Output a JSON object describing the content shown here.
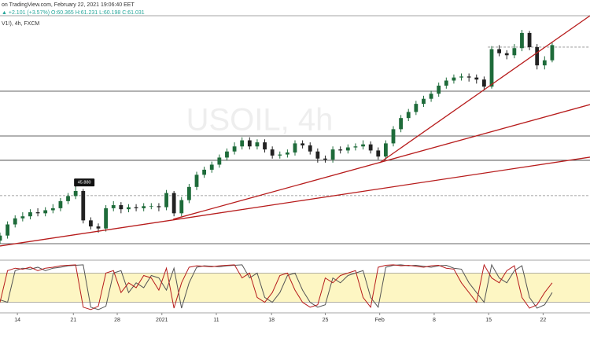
{
  "chart_data": {
    "type": "candlestick",
    "source": "on TradingView.com, February 22, 2021 19:06:40 EET",
    "quote": "▲ +2.101 (+3.57%) O:60.365 H:61.231 L:60.198 C:61.031",
    "symbol": "V1!), 4h, FXCM",
    "watermark": "USOIL, 4h",
    "up_color": "#1e6b3a",
    "down_color": "#222222",
    "xlim": [
      0,
      78
    ],
    "ylim": [
      40.3,
      62.8
    ],
    "xticks": [
      {
        "value": 2.3,
        "label": "14"
      },
      {
        "value": 9.7,
        "label": "21"
      },
      {
        "value": 15.5,
        "label": "28"
      },
      {
        "value": 21.4,
        "label": "2021"
      },
      {
        "value": 28.6,
        "label": "11"
      },
      {
        "value": 35.9,
        "label": "18"
      },
      {
        "value": 43,
        "label": "25"
      },
      {
        "value": 50.2,
        "label": "Feb"
      },
      {
        "value": 57.4,
        "label": "8"
      },
      {
        "value": 64.6,
        "label": "15"
      },
      {
        "value": 71.8,
        "label": "22"
      }
    ],
    "candles": {
      "open": [
        40.6,
        41.1,
        42.2,
        42.8,
        43.0,
        43.4,
        43.3,
        43.6,
        43.8,
        44.5,
        45.0,
        45.5,
        42.6,
        42.0,
        41.8,
        43.8,
        44.1,
        43.7,
        43.9,
        43.8,
        44.0,
        44.0,
        43.9,
        45.3,
        43.3,
        44.6,
        45.9,
        47.1,
        47.6,
        48.1,
        48.8,
        49.4,
        49.9,
        50.5,
        49.9,
        50.3,
        49.6,
        49.0,
        49.1,
        49.3,
        50.2,
        50.0,
        49.4,
        48.7,
        48.6,
        49.6,
        49.5,
        49.8,
        49.9,
        50.1,
        49.5,
        48.9,
        50.2,
        51.6,
        52.7,
        53.3,
        54.1,
        54.6,
        55.1,
        55.9,
        56.4,
        56.7,
        56.8,
        56.7,
        56.5,
        55.8,
        59.5,
        59.1,
        58.9,
        59.6,
        61.1,
        59.7,
        57.9,
        58.4
      ],
      "high": [
        41.4,
        42.5,
        43.1,
        43.4,
        43.7,
        43.8,
        43.9,
        44.2,
        44.8,
        45.3,
        45.88,
        45.7,
        42.9,
        42.3,
        44.1,
        44.5,
        44.4,
        44.2,
        44.2,
        44.3,
        44.3,
        44.3,
        45.6,
        45.5,
        44.9,
        46.2,
        47.4,
        47.9,
        48.4,
        49.1,
        49.7,
        50.3,
        50.8,
        50.8,
        50.6,
        50.6,
        49.9,
        49.4,
        49.6,
        50.5,
        50.5,
        50.3,
        49.7,
        49.0,
        49.9,
        49.9,
        50.1,
        50.2,
        50.5,
        50.4,
        49.8,
        50.5,
        51.9,
        53.0,
        53.6,
        54.4,
        54.9,
        55.4,
        56.2,
        56.7,
        57.0,
        57.1,
        57.1,
        57.0,
        56.8,
        59.8,
        59.9,
        59.4,
        60.0,
        61.4,
        61.3,
        60.0,
        58.8,
        60.2
      ],
      "low": [
        40.3,
        40.8,
        41.9,
        42.5,
        42.7,
        43.0,
        43.0,
        43.3,
        43.5,
        44.2,
        44.7,
        42.3,
        41.7,
        41.4,
        41.5,
        43.5,
        43.3,
        43.4,
        43.5,
        43.5,
        43.7,
        43.5,
        43.6,
        43.0,
        43.0,
        44.3,
        45.6,
        46.8,
        47.3,
        47.8,
        48.5,
        49.1,
        49.6,
        49.6,
        49.6,
        49.3,
        48.7,
        48.7,
        48.8,
        49.0,
        49.7,
        49.1,
        48.3,
        48.3,
        48.3,
        49.2,
        49.2,
        49.5,
        49.6,
        49.2,
        48.6,
        48.6,
        49.9,
        51.3,
        52.4,
        53.0,
        53.8,
        54.3,
        54.8,
        55.6,
        56.1,
        56.4,
        56.3,
        56.1,
        55.5,
        55.6,
        58.8,
        58.5,
        58.6,
        59.3,
        59.4,
        57.5,
        57.5,
        58.2
      ],
      "close": [
        41.1,
        42.2,
        42.8,
        43.0,
        43.4,
        43.3,
        43.6,
        43.8,
        44.5,
        45.0,
        45.5,
        42.6,
        42.0,
        41.8,
        43.8,
        44.1,
        43.7,
        43.9,
        43.8,
        44.0,
        44.0,
        43.9,
        45.3,
        43.3,
        44.6,
        45.9,
        47.1,
        47.6,
        48.1,
        48.8,
        49.4,
        49.9,
        50.5,
        49.9,
        50.3,
        49.6,
        49.0,
        49.1,
        49.3,
        50.2,
        50.0,
        49.4,
        48.7,
        48.6,
        49.6,
        49.5,
        49.8,
        49.9,
        50.1,
        49.5,
        48.9,
        50.2,
        51.6,
        52.7,
        53.3,
        54.1,
        54.6,
        55.1,
        55.9,
        56.4,
        56.7,
        56.8,
        56.7,
        56.5,
        55.8,
        59.5,
        59.1,
        58.9,
        59.6,
        61.1,
        59.7,
        57.9,
        58.4,
        59.9
      ]
    },
    "price_label": {
      "value": 45.88,
      "label": "45.880",
      "x": 10
    },
    "hlines": [
      {
        "value": 59.7,
        "style": "dashed",
        "x_from": 64.5
      },
      {
        "value": 55.35,
        "style": "solid"
      },
      {
        "value": 50.93,
        "style": "solid"
      },
      {
        "value": 48.53,
        "style": "solid"
      },
      {
        "value": 45.04,
        "style": "dashed"
      },
      {
        "value": 40.3,
        "style": "solid"
      }
    ],
    "trend_color": "#b71c1c",
    "trendlines": [
      {
        "x": [
          0,
          78
        ],
        "y": [
          40.07,
          48.84
        ]
      },
      {
        "x": [
          22.9,
          78
        ],
        "y": [
          42.71,
          54.03
        ]
      },
      {
        "x": [
          50.2,
          78
        ],
        "y": [
          48.29,
          62.8
        ]
      }
    ],
    "stochastic": {
      "ylim": [
        0,
        100
      ],
      "levels": [
        80,
        20
      ],
      "band_color": "#fdf6c3",
      "k_color": "#b71c1c",
      "d_color": "#555555",
      "k": [
        20,
        85,
        90,
        88,
        92,
        85,
        90,
        92,
        95,
        96,
        97,
        10,
        5,
        12,
        80,
        85,
        40,
        60,
        50,
        75,
        70,
        45,
        90,
        8,
        60,
        92,
        95,
        94,
        93,
        95,
        96,
        97,
        70,
        80,
        30,
        20,
        40,
        75,
        80,
        45,
        20,
        10,
        15,
        70,
        60,
        75,
        80,
        85,
        30,
        10,
        92,
        96,
        97,
        95,
        96,
        94,
        92,
        95,
        96,
        90,
        88,
        60,
        40,
        20,
        97,
        70,
        60,
        85,
        95,
        30,
        8,
        15,
        40,
        60
      ],
      "d": [
        25,
        20,
        85,
        90,
        88,
        92,
        85,
        90,
        92,
        95,
        96,
        97,
        10,
        5,
        12,
        80,
        85,
        40,
        60,
        50,
        75,
        70,
        45,
        90,
        8,
        60,
        92,
        95,
        94,
        93,
        95,
        96,
        97,
        70,
        80,
        30,
        20,
        40,
        75,
        80,
        45,
        20,
        10,
        15,
        70,
        60,
        75,
        80,
        85,
        30,
        10,
        92,
        96,
        97,
        95,
        96,
        94,
        92,
        95,
        96,
        90,
        88,
        60,
        40,
        20,
        97,
        70,
        60,
        85,
        95,
        30,
        8,
        15,
        40
      ]
    }
  }
}
